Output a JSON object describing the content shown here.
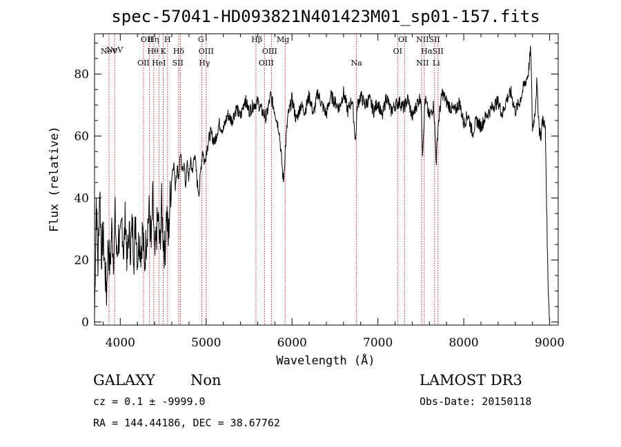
{
  "chart_data": {
    "type": "line",
    "title": "spec-57041-HD093821N401423M01_sp01-157.fits",
    "xlabel": "Wavelength (Å)",
    "ylabel": "Flux (relative)",
    "xlim": [
      3700,
      9100
    ],
    "ylim": [
      -1,
      93
    ],
    "x_ticks": [
      4000,
      5000,
      6000,
      7000,
      8000,
      9000
    ],
    "y_ticks": [
      0,
      20,
      40,
      60,
      80
    ],
    "grid": false,
    "series": [
      {
        "x": [
          3700,
          3720,
          3740,
          3760,
          3780,
          3800,
          3820,
          3840,
          3860,
          3880,
          3900,
          3920,
          3940,
          3960,
          3980,
          4000,
          4020,
          4040,
          4060,
          4080,
          4100,
          4120,
          4140,
          4160,
          4180,
          4200,
          4220,
          4240,
          4260,
          4280,
          4300,
          4320,
          4340,
          4360,
          4380,
          4400,
          4420,
          4440,
          4460,
          4480,
          4500,
          4520,
          4540,
          4560,
          4580,
          4600,
          4620,
          4640,
          4660,
          4680,
          4700,
          4720,
          4740,
          4760,
          4780,
          4800,
          4820,
          4840,
          4860,
          4880,
          4900,
          4920,
          4940,
          4960,
          4980,
          5000,
          5050,
          5100,
          5150,
          5200,
          5250,
          5300,
          5350,
          5400,
          5450,
          5500,
          5550,
          5600,
          5650,
          5700,
          5750,
          5800,
          5850,
          5900,
          5920,
          5950,
          6000,
          6050,
          6100,
          6150,
          6200,
          6250,
          6300,
          6350,
          6400,
          6450,
          6500,
          6550,
          6600,
          6650,
          6700,
          6740,
          6760,
          6800,
          6850,
          6900,
          6950,
          7000,
          7050,
          7100,
          7150,
          7200,
          7250,
          7300,
          7350,
          7400,
          7450,
          7500,
          7520,
          7550,
          7600,
          7650,
          7680,
          7700,
          7720,
          7750,
          7800,
          7850,
          7900,
          7950,
          8000,
          8050,
          8100,
          8150,
          8200,
          8250,
          8300,
          8350,
          8400,
          8450,
          8500,
          8550,
          8600,
          8650,
          8700,
          8750,
          8780,
          8800,
          8830,
          8850,
          8880,
          8900,
          8920,
          8950,
          8980,
          9000
        ],
        "y": [
          2,
          40,
          18,
          44,
          22,
          28,
          18,
          9,
          26,
          17,
          30,
          21,
          34,
          20,
          28,
          24,
          33,
          22,
          35,
          19,
          29,
          24,
          31,
          22,
          34,
          20,
          28,
          23,
          30,
          18,
          26,
          32,
          36,
          24,
          40,
          19,
          28,
          34,
          24,
          38,
          27,
          22,
          36,
          26,
          40,
          47,
          52,
          44,
          50,
          47,
          55,
          48,
          52,
          44,
          51,
          46,
          53,
          47,
          55,
          50,
          44,
          42,
          50,
          56,
          51,
          55,
          61,
          58,
          64,
          62,
          67,
          65,
          69,
          66,
          72,
          68,
          70,
          71,
          68,
          66,
          73,
          68,
          62,
          45,
          55,
          66,
          72,
          65,
          70,
          68,
          73,
          67,
          74,
          70,
          67,
          73,
          71,
          69,
          74,
          68,
          72,
          58,
          70,
          73,
          70,
          72,
          68,
          71,
          66,
          73,
          68,
          70,
          71,
          69,
          72,
          66,
          70,
          73,
          55,
          72,
          66,
          70,
          52,
          63,
          68,
          74,
          71,
          69,
          68,
          71,
          64,
          67,
          61,
          65,
          63,
          66,
          68,
          70,
          71,
          67,
          72,
          74,
          68,
          71,
          76,
          80,
          88,
          62,
          68,
          77,
          62,
          60,
          66,
          62,
          14,
          0
        ]
      }
    ],
    "line_labels": [
      {
        "name": "NeV",
        "wl": 3869,
        "row": 2
      },
      {
        "name": "NeV",
        "wl": 3934,
        "row": 1
      },
      {
        "name": "OII",
        "wl": 4270,
        "row": 3
      },
      {
        "name": "OII",
        "wl": 4310,
        "row": 0
      },
      {
        "name": "Hθ",
        "wl": 4380,
        "row": 2
      },
      {
        "name": "Hη",
        "wl": 4385,
        "row": 0
      },
      {
        "name": "HeI",
        "wl": 4450,
        "row": 3
      },
      {
        "name": "K",
        "wl": 4500,
        "row": 2
      },
      {
        "name": "H",
        "wl": 4550,
        "row": 0
      },
      {
        "name": "Hδ",
        "wl": 4680,
        "row": 2
      },
      {
        "name": "SII",
        "wl": 4670,
        "row": 3
      },
      {
        "name": "G",
        "wl": 4940,
        "row": 0
      },
      {
        "name": "OIII",
        "wl": 5000,
        "row": 2
      },
      {
        "name": "Hγ",
        "wl": 4980,
        "row": 3
      },
      {
        "name": "Hβ",
        "wl": 5590,
        "row": 0
      },
      {
        "name": "OIII",
        "wl": 5740,
        "row": 2
      },
      {
        "name": "OIII",
        "wl": 5700,
        "row": 3
      },
      {
        "name": "Mg",
        "wl": 5895,
        "row": 0
      },
      {
        "name": "Na",
        "wl": 6750,
        "row": 3
      },
      {
        "name": "OI",
        "wl": 7290,
        "row": 0
      },
      {
        "name": "OI",
        "wl": 7230,
        "row": 2
      },
      {
        "name": "NII",
        "wl": 7520,
        "row": 0
      },
      {
        "name": "SII",
        "wl": 7660,
        "row": 0
      },
      {
        "name": "Hα",
        "wl": 7570,
        "row": 2
      },
      {
        "name": "SII",
        "wl": 7700,
        "row": 2
      },
      {
        "name": "NII",
        "wl": 7520,
        "row": 3
      },
      {
        "name": "Li",
        "wl": 7680,
        "row": 3
      }
    ],
    "marker_lines": [
      3869,
      3934,
      4270,
      4340,
      4390,
      4450,
      4500,
      4550,
      4680,
      4700,
      4950,
      5000,
      5580,
      5680,
      5760,
      5920,
      6750,
      7230,
      7310,
      7510,
      7540,
      7660,
      7700
    ],
    "line_color": "#000000",
    "marker_color": "#b22222"
  },
  "info": {
    "object_class": "GALAXY",
    "subclass": "Non",
    "cz": "cz = 0.1 ± -9999.0",
    "radec": "RA = 144.44186, DEC =  38.67762",
    "survey": "LAMOST DR3",
    "obs_date": "Obs-Date: 20150118"
  }
}
